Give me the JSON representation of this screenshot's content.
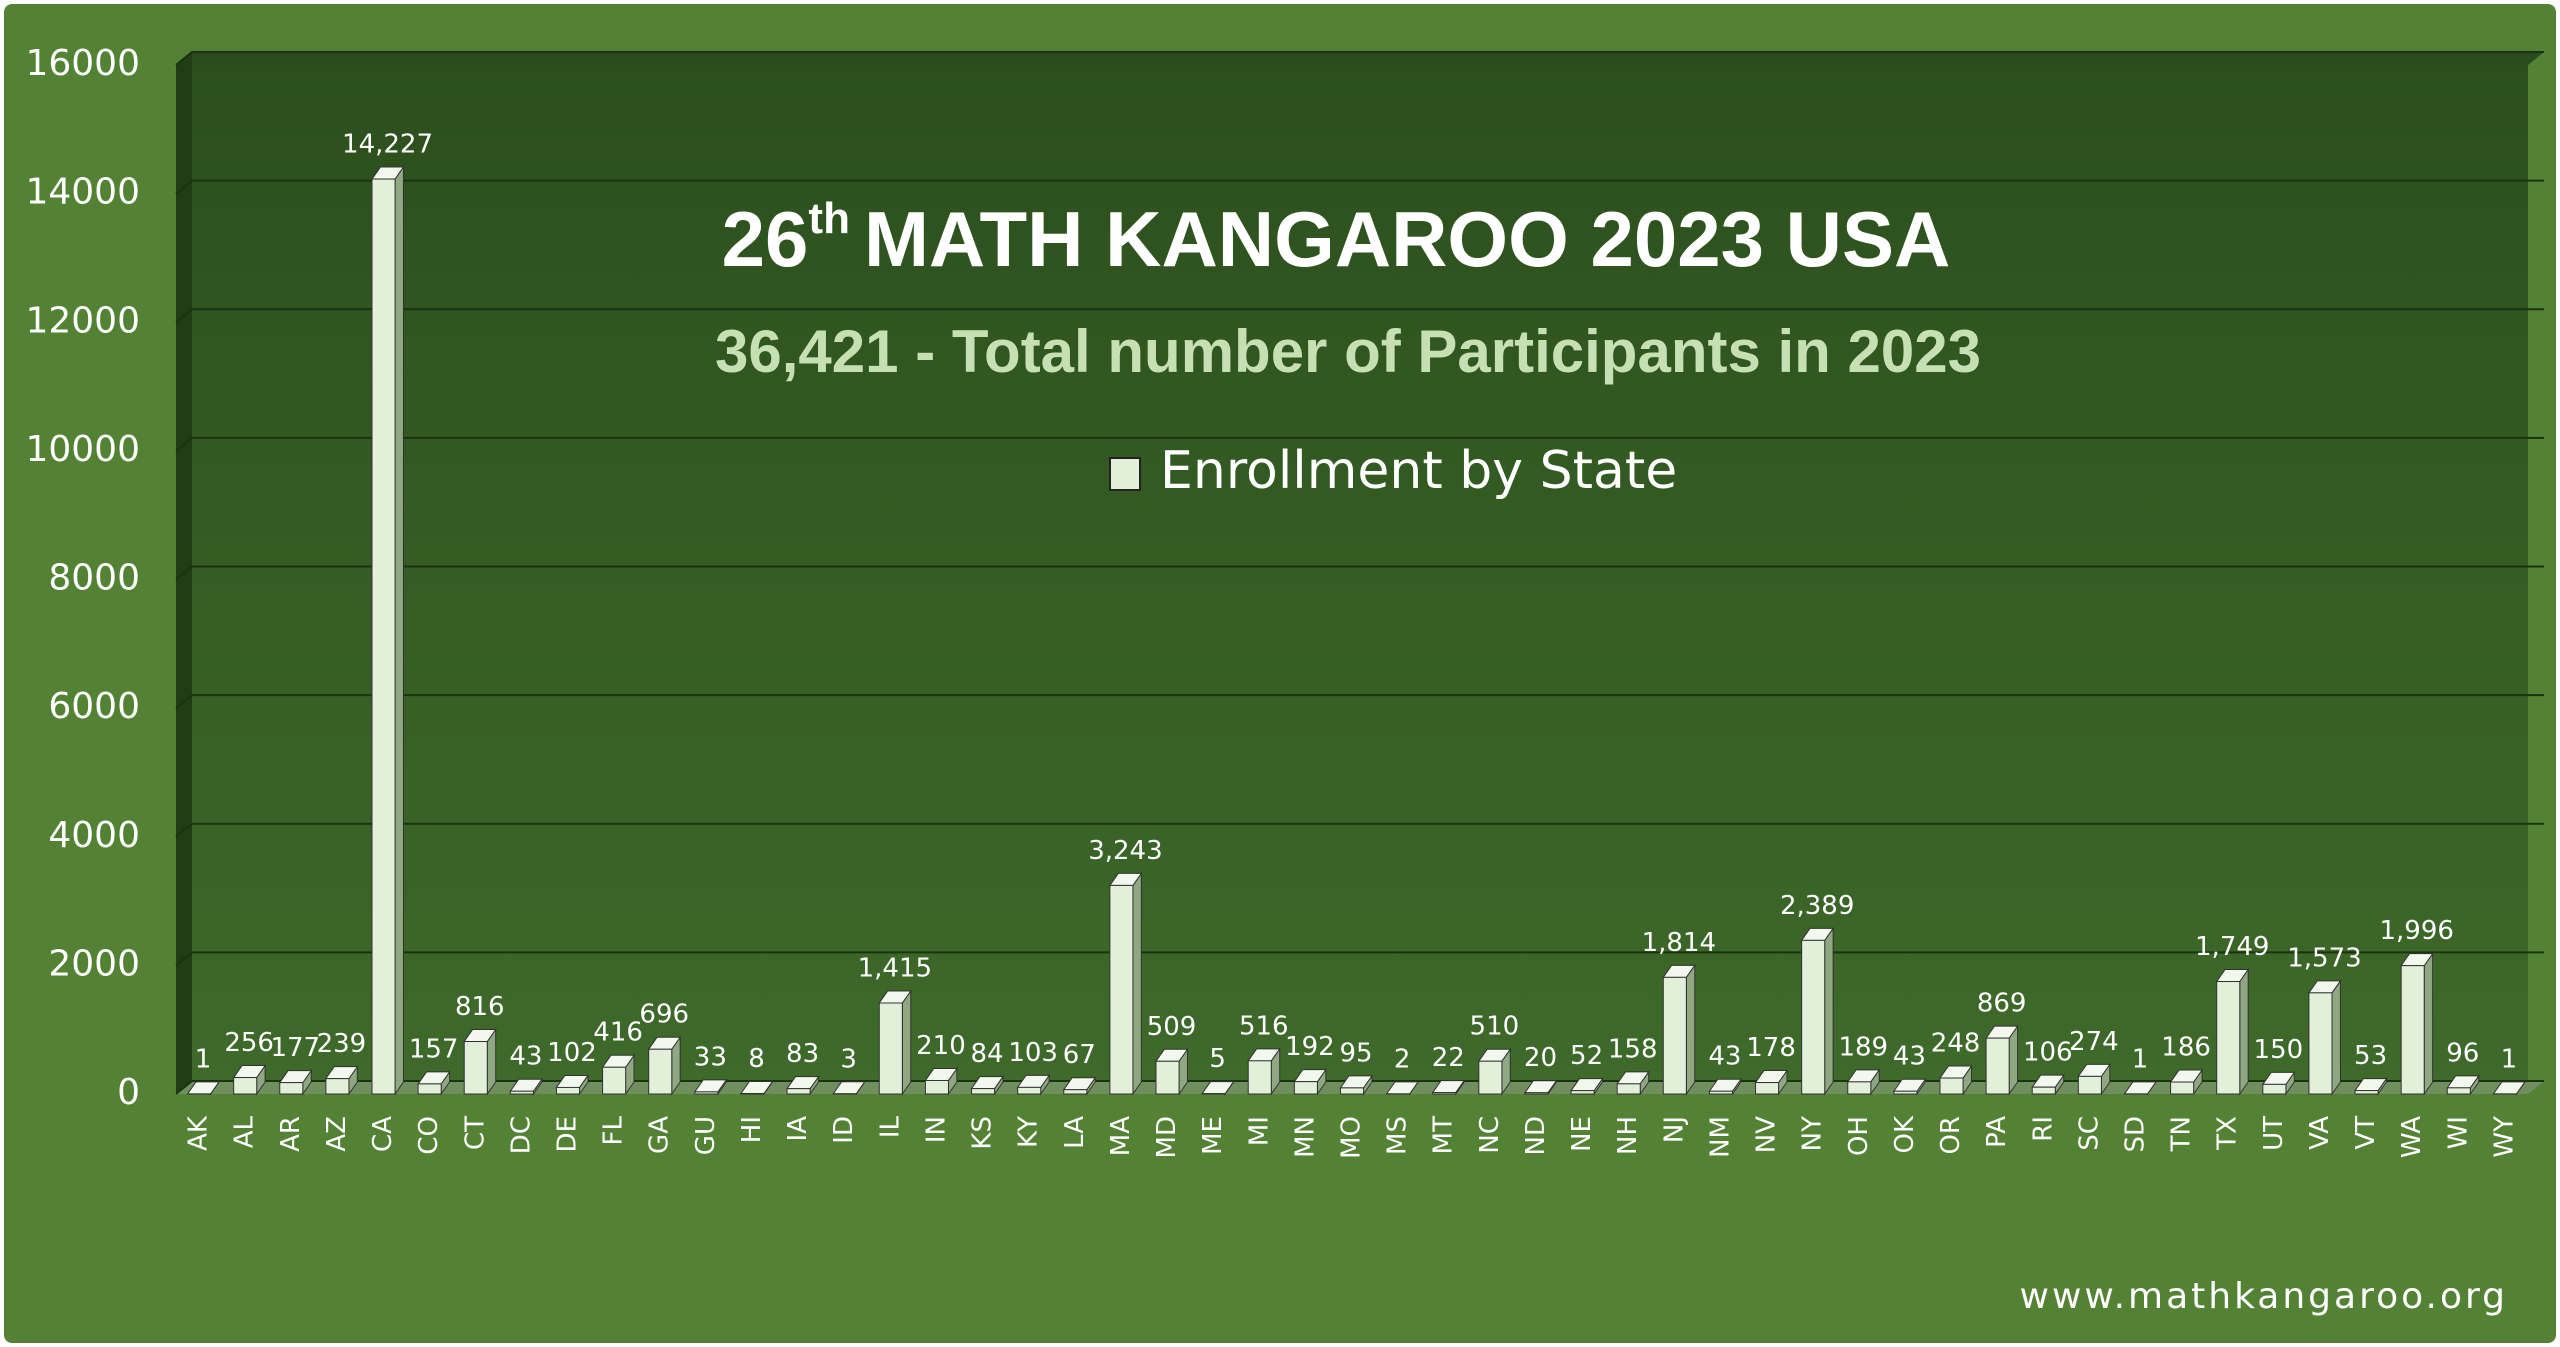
{
  "chart_data": {
    "type": "bar",
    "title_number": "26",
    "title_suffix": "th",
    "title": "MATH KANGAROO 2023 USA",
    "subtitle": "36,421 - Total number of Participants in 2023",
    "footer": "www.mathkangaroo.org",
    "categories": [
      "AK",
      "AL",
      "AR",
      "AZ",
      "CA",
      "CO",
      "CT",
      "DC",
      "DE",
      "FL",
      "GA",
      "GU",
      "HI",
      "IA",
      "ID",
      "IL",
      "IN",
      "KS",
      "KY",
      "LA",
      "MA",
      "MD",
      "ME",
      "MI",
      "MN",
      "MO",
      "MS",
      "MT",
      "NC",
      "ND",
      "NE",
      "NH",
      "NJ",
      "NM",
      "NV",
      "NY",
      "OH",
      "OK",
      "OR",
      "PA",
      "RI",
      "SC",
      "SD",
      "TN",
      "TX",
      "UT",
      "VA",
      "VT",
      "WA",
      "WI",
      "WY"
    ],
    "series": [
      {
        "name": "Enrollment by State",
        "color": "#e2efd9",
        "values": [
          1,
          256,
          177,
          239,
          14227,
          157,
          816,
          43,
          102,
          416,
          696,
          33,
          8,
          83,
          3,
          1415,
          210,
          84,
          103,
          67,
          3243,
          509,
          5,
          516,
          192,
          95,
          2,
          22,
          510,
          20,
          52,
          158,
          1814,
          43,
          178,
          2389,
          189,
          43,
          248,
          869,
          106,
          274,
          1,
          186,
          1749,
          150,
          1573,
          53,
          1996,
          96,
          1
        ],
        "value_labels": [
          "1",
          "256",
          "177",
          "239",
          "14,227",
          "157",
          "816",
          "43",
          "102",
          "416",
          "696",
          "33",
          "8",
          "83",
          "3",
          "1,415",
          "210",
          "84",
          "103",
          "67",
          "3,243",
          "509",
          "5",
          "516",
          "192",
          "95",
          "2",
          "22",
          "510",
          "20",
          "52",
          "158",
          "1,814",
          "43",
          "178",
          "2,389",
          "189",
          "43",
          "248",
          "869",
          "106",
          "274",
          "1",
          "186",
          "1,749",
          "150",
          "1,573",
          "53",
          "1,996",
          "96",
          "1"
        ]
      }
    ],
    "ylim": [
      0,
      16000
    ],
    "yticks": [
      0,
      2000,
      4000,
      6000,
      8000,
      10000,
      12000,
      14000,
      16000
    ],
    "grid": true
  }
}
